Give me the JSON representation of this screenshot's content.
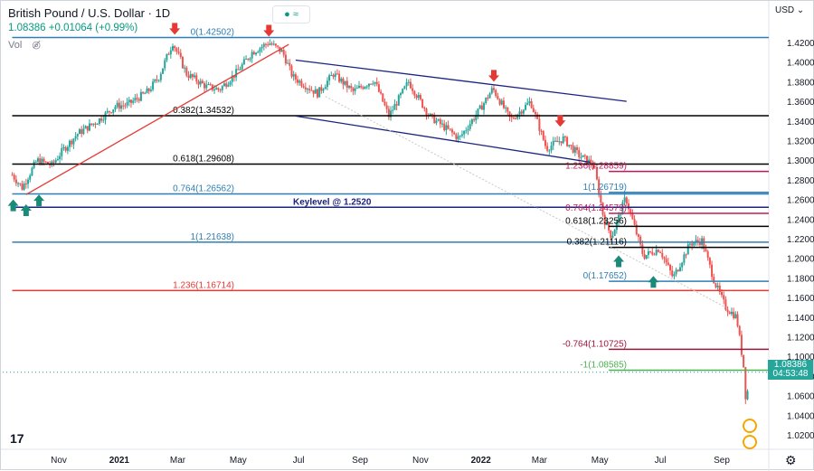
{
  "header": {
    "title": "British Pound / U.S. Dollar · 1D",
    "quote": "1.08386 +0.01064 (+0.99%)",
    "vol_label": "Vol",
    "toggle_label": "● ≈",
    "currency": "USD"
  },
  "price_badge": {
    "price": "1.08386",
    "countdown": "04:53:48"
  },
  "logo": "17",
  "colors": {
    "up": "#26a69a",
    "down": "#ef5350",
    "arrow_up": "#1b8a78",
    "arrow_down": "#e53935",
    "blue": "#2f7fb5",
    "navy": "#1a237e",
    "black": "#000000",
    "magenta": "#c2185b",
    "red": "#e53935",
    "green": "#4caf50",
    "crimson": "#a0163a"
  },
  "chart_data": {
    "type": "candlestick",
    "title": "British Pound / U.S. Dollar · 1D",
    "ylim": [
      1.005,
      1.435
    ],
    "y_ticks": [
      "1.42000",
      "1.40000",
      "1.38000",
      "1.36000",
      "1.34000",
      "1.32000",
      "1.30000",
      "1.28000",
      "1.26000",
      "1.24000",
      "1.22000",
      "1.20000",
      "1.18000",
      "1.16000",
      "1.14000",
      "1.12000",
      "1.10000",
      "1.08000",
      "1.06000",
      "1.04000",
      "1.02000"
    ],
    "x_ticks": [
      "Nov",
      "2021",
      "Mar",
      "May",
      "Jul",
      "Sep",
      "Nov",
      "2022",
      "Mar",
      "May",
      "Jul",
      "Sep"
    ],
    "x_tick_dates": [
      "2020-11-01",
      "2021-01-01",
      "2021-03-01",
      "2021-05-01",
      "2021-07-01",
      "2021-09-01",
      "2021-11-01",
      "2022-01-01",
      "2022-03-01",
      "2022-05-01",
      "2022-07-01",
      "2022-09-01"
    ],
    "last_price": 1.08386,
    "price_path": [
      [
        "2020-09-15",
        1.285
      ],
      [
        "2020-09-25",
        1.272
      ],
      [
        "2020-10-10",
        1.3
      ],
      [
        "2020-10-25",
        1.295
      ],
      [
        "2020-11-05",
        1.31
      ],
      [
        "2020-11-20",
        1.327
      ],
      [
        "2020-12-10",
        1.34
      ],
      [
        "2020-12-28",
        1.355
      ],
      [
        "2021-01-10",
        1.357
      ],
      [
        "2021-01-30",
        1.37
      ],
      [
        "2021-02-10",
        1.385
      ],
      [
        "2021-02-24",
        1.42
      ],
      [
        "2021-03-10",
        1.388
      ],
      [
        "2021-03-30",
        1.375
      ],
      [
        "2021-04-12",
        1.372
      ],
      [
        "2021-04-30",
        1.39
      ],
      [
        "2021-05-15",
        1.41
      ],
      [
        "2021-06-01",
        1.42
      ],
      [
        "2021-06-15",
        1.41
      ],
      [
        "2021-06-25",
        1.385
      ],
      [
        "2021-07-20",
        1.368
      ],
      [
        "2021-08-05",
        1.388
      ],
      [
        "2021-08-25",
        1.37
      ],
      [
        "2021-09-15",
        1.382
      ],
      [
        "2021-09-30",
        1.345
      ],
      [
        "2021-10-20",
        1.38
      ],
      [
        "2021-11-10",
        1.345
      ],
      [
        "2021-11-30",
        1.33
      ],
      [
        "2021-12-10",
        1.322
      ],
      [
        "2021-12-31",
        1.352
      ],
      [
        "2022-01-13",
        1.373
      ],
      [
        "2022-01-31",
        1.341
      ],
      [
        "2022-02-20",
        1.36
      ],
      [
        "2022-03-08",
        1.312
      ],
      [
        "2022-03-25",
        1.322
      ],
      [
        "2022-04-10",
        1.305
      ],
      [
        "2022-04-25",
        1.295
      ],
      [
        "2022-05-05",
        1.24
      ],
      [
        "2022-05-13",
        1.222
      ],
      [
        "2022-05-27",
        1.262
      ],
      [
        "2022-06-14",
        1.202
      ],
      [
        "2022-06-30",
        1.21
      ],
      [
        "2022-07-14",
        1.18
      ],
      [
        "2022-07-31",
        1.215
      ],
      [
        "2022-08-12",
        1.218
      ],
      [
        "2022-08-25",
        1.175
      ],
      [
        "2022-09-05",
        1.15
      ],
      [
        "2022-09-16",
        1.14
      ],
      [
        "2022-09-23",
        1.09
      ],
      [
        "2022-09-26",
        1.045
      ],
      [
        "2022-09-28",
        1.084
      ]
    ],
    "series": [
      {
        "name": "0(1.42502)",
        "type": "hline",
        "y": 1.42502,
        "from": "2020-09-15",
        "to": "2022-10-20",
        "color": "#2f7fb5"
      },
      {
        "name": "0.382(1.34532)",
        "type": "hline",
        "y": 1.34532,
        "from": "2020-09-15",
        "to": "2022-10-20",
        "color": "#000000"
      },
      {
        "name": "0.618(1.29608)",
        "type": "hline",
        "y": 1.29608,
        "from": "2020-09-15",
        "to": "2022-10-20",
        "color": "#000000"
      },
      {
        "name": "0.764(1.26562)",
        "type": "hline",
        "y": 1.26562,
        "from": "2020-09-15",
        "to": "2022-10-20",
        "color": "#2f7fb5"
      },
      {
        "name": "1(1.21638)",
        "type": "hline",
        "y": 1.21638,
        "from": "2020-09-15",
        "to": "2022-10-20",
        "color": "#2f7fb5"
      },
      {
        "name": "1.236(1.16714)",
        "type": "hline",
        "y": 1.16714,
        "from": "2020-09-15",
        "to": "2022-10-20",
        "color": "#e53935"
      },
      {
        "name": "Keylevel @ 1.2520",
        "type": "hline",
        "y": 1.252,
        "from": "2020-09-15",
        "to": "2022-10-20",
        "color": "#1a237e"
      },
      {
        "name": "1.236(1.28859)",
        "type": "hline",
        "y": 1.28859,
        "from": "2022-05-10",
        "to": "2022-10-20",
        "color": "#c2185b"
      },
      {
        "name": "1(1.26719)",
        "type": "hline",
        "y": 1.26719,
        "from": "2022-05-10",
        "to": "2022-10-20",
        "color": "#2f7fb5"
      },
      {
        "name": "0.764(1.24579)",
        "type": "hline",
        "y": 1.24579,
        "from": "2022-05-10",
        "to": "2022-10-20",
        "color": "#c2185b"
      },
      {
        "name": "0.618(1.23256)",
        "type": "hline",
        "y": 1.23256,
        "from": "2022-05-10",
        "to": "2022-10-20",
        "color": "#000000"
      },
      {
        "name": "0.382(1.21116)",
        "type": "hline",
        "y": 1.21116,
        "from": "2022-05-10",
        "to": "2022-10-20",
        "color": "#000000"
      },
      {
        "name": "0(1.17652)",
        "type": "hline",
        "y": 1.17652,
        "from": "2022-05-10",
        "to": "2022-10-20",
        "color": "#2f7fb5"
      },
      {
        "name": "-0.764(1.10725)",
        "type": "hline",
        "y": 1.10725,
        "from": "2022-05-10",
        "to": "2022-10-20",
        "color": "#a0163a"
      },
      {
        "name": "-1(1.08585)",
        "type": "hline",
        "y": 1.08585,
        "from": "2022-05-10",
        "to": "2022-10-20",
        "color": "#4caf50"
      }
    ],
    "trendlines": [
      {
        "from": [
          "2020-09-29",
          1.265
        ],
        "to": [
          "2021-06-21",
          1.418
        ],
        "color": "#e53935"
      },
      {
        "from": [
          "2021-06-28",
          1.402
        ],
        "to": [
          "2022-05-28",
          1.36
        ],
        "color": "#1a237e"
      },
      {
        "from": [
          "2021-06-28",
          1.345
        ],
        "to": [
          "2022-04-21",
          1.298
        ],
        "color": "#1a237e"
      },
      {
        "from": [
          "2021-07-28",
          1.365
        ],
        "to": [
          "2022-09-05",
          1.15
        ],
        "color": "#c7c7c7",
        "dotted": true
      }
    ],
    "arrows_up": [
      [
        "2020-09-16",
        1.26
      ],
      [
        "2020-09-29",
        1.255
      ],
      [
        "2020-10-12",
        1.265
      ],
      [
        "2022-05-20",
        1.203
      ],
      [
        "2022-06-24",
        1.182
      ]
    ],
    "arrows_down": [
      [
        "2021-02-26",
        1.428
      ],
      [
        "2021-06-01",
        1.426
      ],
      [
        "2022-01-14",
        1.38
      ],
      [
        "2022-03-22",
        1.334
      ]
    ]
  }
}
